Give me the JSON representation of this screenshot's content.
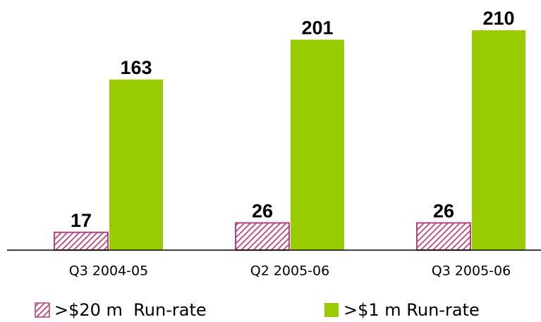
{
  "chart_data": {
    "type": "bar",
    "categories": [
      "Q3 2004-05",
      "Q2 2005-06",
      "Q3 2005-06"
    ],
    "series": [
      {
        "name": ">$20 m  Run-rate",
        "color": "#b2447c",
        "values": [
          17,
          26,
          26
        ]
      },
      {
        "name": ">$1 m Run-rate",
        "color": "#99cc00",
        "values": [
          163,
          201,
          210
        ]
      }
    ]
  }
}
